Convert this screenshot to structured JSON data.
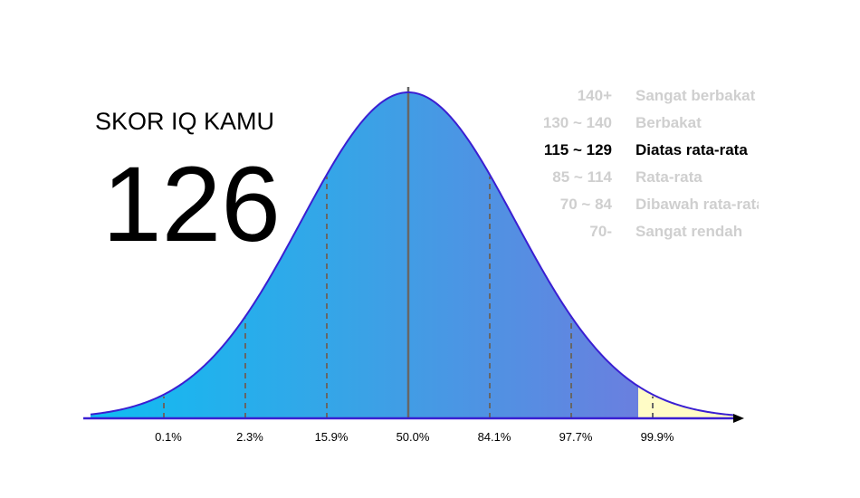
{
  "score": {
    "title": "SKOR IQ KAMU",
    "value": "126"
  },
  "ranges": [
    {
      "range": "140+",
      "label": "Sangat berbakat"
    },
    {
      "range": "130 ~ 140",
      "label": "Berbakat"
    },
    {
      "range": "115 ~ 129",
      "label": "Diatas rata-rata"
    },
    {
      "range": "85 ~ 114",
      "label": "Rata-rata"
    },
    {
      "range": "70 ~ 84",
      "label": "Dibawah rata-rata"
    },
    {
      "range": "70-",
      "label": "Sangat rendah"
    }
  ],
  "percentiles": [
    "0.1%",
    "2.3%",
    "15.9%",
    "50.0%",
    "84.1%",
    "97.7%",
    "99.9%"
  ]
}
